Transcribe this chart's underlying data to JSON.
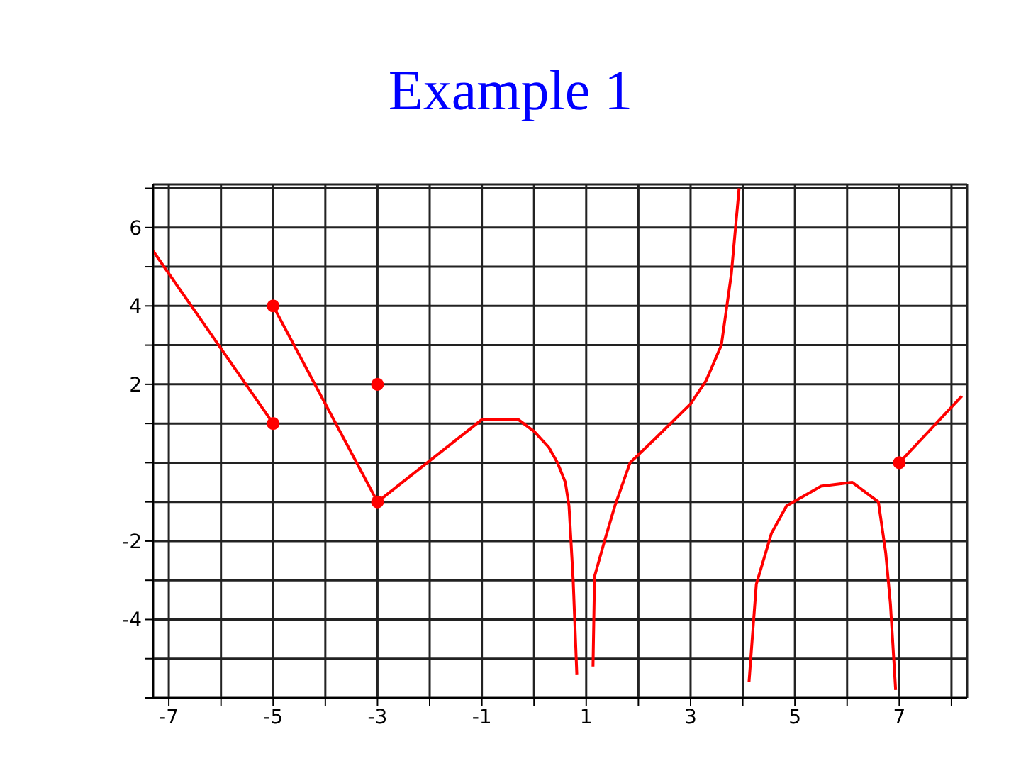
{
  "chart_data": {
    "type": "line",
    "title": "Example 1",
    "xlim": [
      -7.3,
      8.3
    ],
    "ylim": [
      -6,
      7.1
    ],
    "xticks": [
      -7,
      {
        "value": -6,
        "label": null
      },
      -5,
      {
        "value": -4,
        "label": null
      },
      -3,
      {
        "value": -2,
        "label": null
      },
      -1,
      {
        "value": 0,
        "label": null
      },
      1,
      {
        "value": 2,
        "label": null
      },
      3,
      {
        "value": 4,
        "label": null
      },
      5,
      {
        "value": 6,
        "label": null
      },
      7,
      {
        "value": 8,
        "label": null
      }
    ],
    "yticks": [
      {
        "value": -6,
        "label": null
      },
      {
        "value": -5,
        "label": null
      },
      -4,
      {
        "value": -3,
        "label": null
      },
      -2,
      {
        "value": -1,
        "label": null
      },
      {
        "value": 0,
        "label": null
      },
      {
        "value": 1,
        "label": null
      },
      2,
      {
        "value": 3,
        "label": null
      },
      4,
      {
        "value": 5,
        "label": null
      },
      6,
      {
        "value": 7,
        "label": null
      }
    ],
    "grid": true,
    "line_style": "solid",
    "marker": "none",
    "series": [
      {
        "color": "#ff0000",
        "x": [
          -7.3,
          -5
        ],
        "values": [
          5.4,
          1
        ]
      },
      {
        "color": "#ff0000",
        "x": [
          -5,
          -3
        ],
        "values": [
          4,
          -1
        ]
      },
      {
        "color": "#ff0000",
        "x": [
          -3,
          -1,
          -0.3,
          0,
          0.28,
          0.45,
          0.6,
          0.67,
          0.75,
          0.82
        ],
        "values": [
          -1,
          1.1,
          1.1,
          0.8,
          0.4,
          0,
          -0.5,
          -1.1,
          -3,
          -5.4
        ]
      },
      {
        "color": "#ff0000",
        "x": [
          1.13,
          1.16,
          1.35,
          1.55,
          1.84,
          2.31,
          3,
          3.3,
          3.59,
          3.78,
          3.93
        ],
        "values": [
          -5.2,
          -2.9,
          -2,
          -1.1,
          0,
          0.6,
          1.5,
          2.1,
          3,
          4.8,
          7
        ]
      },
      {
        "color": "#ff0000",
        "x": [
          4.12,
          4.26,
          4.55,
          4.84,
          5.5,
          6.1,
          6.6,
          6.74,
          6.83,
          6.93
        ],
        "values": [
          -5.6,
          -3.1,
          -1.8,
          -1.1,
          -0.6,
          -0.5,
          -1,
          -2.3,
          -3.6,
          -5.8
        ]
      },
      {
        "color": "#ff0000",
        "x": [
          7,
          8.2
        ],
        "values": [
          0,
          1.7
        ]
      },
      {
        "type": "scatter",
        "color": "#ff0000",
        "marker": "circle",
        "x": [
          -5,
          -5,
          -3,
          -3,
          7
        ],
        "values": [
          4,
          1,
          -1,
          2,
          0
        ]
      }
    ]
  }
}
